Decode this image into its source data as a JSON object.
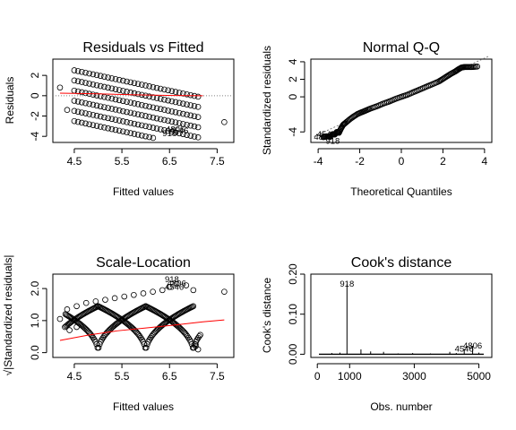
{
  "figure": {
    "background": "#ffffff",
    "point_color": "#000000",
    "smooth_color": "#ff0000"
  },
  "chart_data": [
    {
      "id": "p1",
      "type": "scatter",
      "title": "Residuals vs Fitted",
      "xlabel": "Fitted values",
      "ylabel": "Residuals",
      "xlim": [
        4.05,
        7.85
      ],
      "ylim": [
        -4.6,
        3.6
      ],
      "xticks": [
        4.5,
        5.5,
        6.5,
        7.5
      ],
      "xtick_labels": [
        "4.5",
        "5.5",
        "6.5",
        "7.5"
      ],
      "yticks": [
        -4,
        -2,
        0,
        2
      ],
      "ytick_labels": [
        "-4",
        "-2",
        "0",
        "2"
      ],
      "grid": false,
      "reference_line": {
        "y": 0,
        "style": "dotted",
        "color": "#808080"
      },
      "smooth_line": [
        [
          4.2,
          0.25
        ],
        [
          5.0,
          0.18
        ],
        [
          5.8,
          0.08
        ],
        [
          6.6,
          0.02
        ],
        [
          7.2,
          0.0
        ]
      ],
      "bands": {
        "fitted_range": [
          4.2,
          7.2
        ],
        "residual_bands_at_x_4_5": [
          2.5,
          1.5,
          0.5,
          -0.5,
          -1.5,
          -2.5
        ],
        "slope": -1,
        "points_per_band": 34
      },
      "extra_points": [
        [
          4.2,
          0.8
        ],
        [
          4.35,
          -1.4
        ],
        [
          7.65,
          -2.6
        ]
      ],
      "labeled_points": [
        {
          "x": 6.5,
          "y": -3.7,
          "label": "918"
        },
        {
          "x": 6.62,
          "y": -3.3,
          "label": "4806"
        },
        {
          "x": 6.7,
          "y": -3.45,
          "label": "4546"
        }
      ]
    },
    {
      "id": "p2",
      "type": "scatter",
      "title": "Normal Q-Q",
      "xlabel": "Theoretical Quantiles",
      "ylabel": "Standardized residuals",
      "xlim": [
        -4.35,
        4.35
      ],
      "ylim": [
        -5.2,
        4.3
      ],
      "xticks": [
        -4,
        -2,
        0,
        2,
        4
      ],
      "xtick_labels": [
        "-4",
        "-2",
        "0",
        "2",
        "4"
      ],
      "yticks": [
        -4,
        0,
        2,
        4
      ],
      "ytick_labels": [
        "-4",
        "0",
        "2",
        "4"
      ],
      "grid": false,
      "reference_line": {
        "slope": 1.09,
        "intercept": 0.05,
        "style": "dotted",
        "color": "#808080"
      },
      "qq_points": [
        [
          -3.75,
          -4.6
        ],
        [
          -3.6,
          -4.5
        ],
        [
          -3.45,
          -4.55
        ],
        [
          -3.3,
          -4.25
        ],
        [
          -3.2,
          -4.3
        ],
        [
          -3.1,
          -4.0
        ],
        [
          -3.0,
          -4.1
        ],
        [
          -2.9,
          -3.6
        ],
        [
          -2.8,
          -3.2
        ],
        [
          -2.7,
          -3.0
        ],
        [
          -2.5,
          -2.6
        ],
        [
          -2.3,
          -2.25
        ],
        [
          -2.1,
          -1.95
        ],
        [
          -1.9,
          -1.75
        ],
        [
          -1.7,
          -1.55
        ],
        [
          -1.5,
          -1.35
        ],
        [
          -1.2,
          -1.1
        ],
        [
          -0.9,
          -0.8
        ],
        [
          -0.6,
          -0.55
        ],
        [
          -0.3,
          -0.25
        ],
        [
          0.0,
          0.0
        ],
        [
          0.3,
          0.25
        ],
        [
          0.6,
          0.55
        ],
        [
          0.9,
          0.85
        ],
        [
          1.2,
          1.15
        ],
        [
          1.5,
          1.45
        ],
        [
          1.8,
          1.75
        ],
        [
          2.0,
          2.05
        ],
        [
          2.2,
          2.35
        ],
        [
          2.4,
          2.65
        ],
        [
          2.6,
          2.9
        ],
        [
          2.75,
          3.15
        ],
        [
          2.9,
          3.35
        ],
        [
          3.05,
          3.4
        ],
        [
          3.2,
          3.4
        ],
        [
          3.4,
          3.4
        ],
        [
          3.65,
          3.45
        ]
      ],
      "labeled_points": [
        {
          "x": -3.75,
          "y": -4.6,
          "label": "4806"
        },
        {
          "x": -3.6,
          "y": -4.3,
          "label": "4546"
        },
        {
          "x": -3.3,
          "y": -5.05,
          "label": "918"
        }
      ]
    },
    {
      "id": "p3",
      "type": "scatter",
      "title": "Scale-Location",
      "xlabel": "Fitted values",
      "ylabel": "√|Standardized residuals|",
      "xlim": [
        4.05,
        7.85
      ],
      "ylim": [
        -0.15,
        2.45
      ],
      "xticks": [
        4.5,
        5.5,
        6.5,
        7.5
      ],
      "xtick_labels": [
        "4.5",
        "5.5",
        "6.5",
        "7.5"
      ],
      "yticks": [
        0.0,
        1.0,
        2.0
      ],
      "ytick_labels": [
        "0.0",
        "1.0",
        "2.0"
      ],
      "grid": false,
      "smooth_line": [
        [
          4.2,
          0.38
        ],
        [
          4.8,
          0.55
        ],
        [
          5.4,
          0.68
        ],
        [
          6.0,
          0.77
        ],
        [
          6.6,
          0.86
        ],
        [
          7.2,
          0.96
        ],
        [
          7.65,
          1.02
        ]
      ],
      "v_centers": [
        4.0,
        5.0,
        6.0,
        7.0
      ],
      "v_bounds": [
        4.3,
        7.15
      ],
      "v_max": 1.45,
      "points_per_v": 90,
      "arc_points": [
        [
          4.2,
          1.05
        ],
        [
          4.35,
          1.35
        ],
        [
          4.55,
          1.45
        ],
        [
          4.75,
          1.55
        ],
        [
          4.95,
          1.6
        ],
        [
          5.15,
          1.65
        ],
        [
          5.35,
          1.7
        ],
        [
          5.55,
          1.75
        ],
        [
          5.75,
          1.8
        ],
        [
          5.95,
          1.85
        ],
        [
          6.15,
          1.9
        ],
        [
          6.35,
          1.95
        ],
        [
          6.5,
          2.05
        ],
        [
          6.65,
          2.15
        ],
        [
          6.85,
          2.1
        ],
        [
          7.0,
          1.95
        ],
        [
          7.65,
          1.9
        ],
        [
          4.55,
          0.8
        ],
        [
          4.4,
          0.7
        ],
        [
          7.05,
          0.2
        ],
        [
          7.1,
          0.1
        ],
        [
          7.05,
          0.25
        ]
      ],
      "labeled_points": [
        {
          "x": 6.55,
          "y": 2.28,
          "label": "918"
        },
        {
          "x": 6.65,
          "y": 2.15,
          "label": "4806"
        },
        {
          "x": 6.6,
          "y": 2.05,
          "label": "4546"
        }
      ]
    },
    {
      "id": "p4",
      "type": "bar",
      "title": "Cook's distance",
      "xlabel": "Obs. number",
      "ylabel": "Cook's distance",
      "xlim": [
        -200,
        5400
      ],
      "ylim": [
        -0.008,
        0.2
      ],
      "xticks": [
        0,
        1000,
        3000,
        5000
      ],
      "xtick_labels": [
        "0",
        "1000",
        "3000",
        "5000"
      ],
      "yticks": [
        0.0,
        0.1,
        0.2
      ],
      "ytick_labels": [
        "0.00",
        "0.10",
        "0.20"
      ],
      "grid": false,
      "spikes": [
        [
          918,
          0.175
        ],
        [
          1350,
          0.012
        ],
        [
          1650,
          0.007
        ],
        [
          2050,
          0.006
        ],
        [
          2950,
          0.003
        ],
        [
          4100,
          0.006
        ],
        [
          4546,
          0.013
        ],
        [
          4806,
          0.021
        ],
        [
          5000,
          0.004
        ],
        [
          450,
          0.003
        ],
        [
          700,
          0.004
        ],
        [
          2500,
          0.002
        ],
        [
          3500,
          0.002
        ],
        [
          4300,
          0.003
        ]
      ],
      "baseline_x": [
        50,
        5150
      ],
      "baseline_y": 0.002,
      "labeled_points": [
        {
          "x": 918,
          "y": 0.175,
          "label": "918"
        },
        {
          "x": 4546,
          "y": 0.013,
          "label": "4546"
        },
        {
          "x": 4806,
          "y": 0.021,
          "label": "4806"
        }
      ]
    }
  ]
}
